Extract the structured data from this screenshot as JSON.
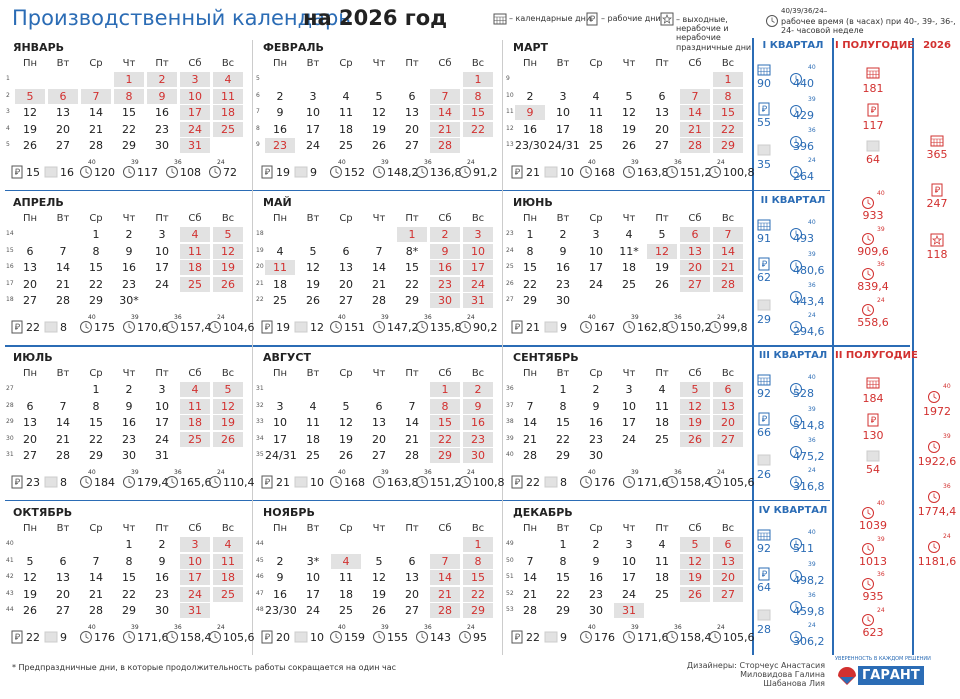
{
  "title": "Производственный календарь",
  "title_year": "на 2026 год",
  "legend": {
    "calendar_days": "– календарные дни",
    "work_days": "– рабочие дни",
    "days_off": "– выходные, нерабочие и нерабочие праздничные дни",
    "hours_top": "40/39/36/24–",
    "hours": "рабочее время (в часах) при 40-, 39-, 36-, 24- часовой неделе"
  },
  "hour_norms": [
    "40",
    "39",
    "36",
    "24"
  ],
  "weekdays": [
    "Пн",
    "Вт",
    "Ср",
    "Чт",
    "Пт",
    "Сб",
    "Вс"
  ],
  "months": [
    {
      "name": "ЯНВАРЬ",
      "weeks": [
        {
          "n": "1",
          "days": [
            null,
            null,
            null,
            "1",
            "2",
            "3",
            "4"
          ]
        },
        {
          "n": "2",
          "days": [
            "5",
            "6",
            "7",
            "8",
            "9",
            "10",
            "11"
          ]
        },
        {
          "n": "3",
          "days": [
            "12",
            "13",
            "14",
            "15",
            "16",
            "17",
            "18"
          ]
        },
        {
          "n": "4",
          "days": [
            "19",
            "20",
            "21",
            "22",
            "23",
            "24",
            "25"
          ]
        },
        {
          "n": "5",
          "days": [
            "26",
            "27",
            "28",
            "29",
            "30",
            "31"
          ]
        }
      ],
      "off_days": [
        "1",
        "2",
        "3",
        "4",
        "5",
        "6",
        "7",
        "8",
        "9",
        "10",
        "11",
        "17",
        "18",
        "24",
        "25",
        "31"
      ],
      "stats": {
        "work": "15",
        "off": "16",
        "hours": [
          "120",
          "117",
          "108",
          "72"
        ]
      }
    },
    {
      "name": "ФЕВРАЛЬ",
      "weeks": [
        {
          "n": "5",
          "days": [
            null,
            null,
            null,
            null,
            null,
            null,
            "1"
          ]
        },
        {
          "n": "6",
          "days": [
            "2",
            "3",
            "4",
            "5",
            "6",
            "7",
            "8"
          ]
        },
        {
          "n": "7",
          "days": [
            "9",
            "10",
            "11",
            "12",
            "13",
            "14",
            "15"
          ]
        },
        {
          "n": "8",
          "days": [
            "16",
            "17",
            "18",
            "19",
            "20",
            "21",
            "22"
          ]
        },
        {
          "n": "9",
          "days": [
            "23",
            "24",
            "25",
            "26",
            "27",
            "28"
          ]
        }
      ],
      "off_days": [
        "1",
        "7",
        "8",
        "14",
        "15",
        "21",
        "22",
        "23",
        "28"
      ],
      "stats": {
        "work": "19",
        "off": "9",
        "hours": [
          "152",
          "148,2",
          "136,8",
          "91,2"
        ]
      }
    },
    {
      "name": "МАРТ",
      "weeks": [
        {
          "n": "9",
          "days": [
            null,
            null,
            null,
            null,
            null,
            null,
            "1"
          ]
        },
        {
          "n": "10",
          "days": [
            "2",
            "3",
            "4",
            "5",
            "6",
            "7",
            "8"
          ]
        },
        {
          "n": "11",
          "days": [
            "9",
            "10",
            "11",
            "12",
            "13",
            "14",
            "15"
          ]
        },
        {
          "n": "12",
          "days": [
            "16",
            "17",
            "18",
            "19",
            "20",
            "21",
            "22"
          ]
        },
        {
          "n": "13",
          "days": [
            "23/30",
            "24/31",
            "25",
            "26",
            "27",
            "28",
            "29"
          ]
        }
      ],
      "off_days": [
        "1",
        "7",
        "8",
        "9",
        "14",
        "15",
        "21",
        "22",
        "28",
        "29"
      ],
      "stats": {
        "work": "21",
        "off": "10",
        "hours": [
          "168",
          "163,8",
          "151,2",
          "100,8"
        ]
      }
    },
    {
      "name": "АПРЕЛЬ",
      "weeks": [
        {
          "n": "14",
          "days": [
            null,
            null,
            "1",
            "2",
            "3",
            "4",
            "5"
          ]
        },
        {
          "n": "15",
          "days": [
            "6",
            "7",
            "8",
            "9",
            "10",
            "11",
            "12"
          ]
        },
        {
          "n": "16",
          "days": [
            "13",
            "14",
            "15",
            "16",
            "17",
            "18",
            "19"
          ]
        },
        {
          "n": "17",
          "days": [
            "20",
            "21",
            "22",
            "23",
            "24",
            "25",
            "26"
          ]
        },
        {
          "n": "18",
          "days": [
            "27",
            "28",
            "29",
            "30*"
          ]
        }
      ],
      "off_days": [
        "4",
        "5",
        "11",
        "12",
        "18",
        "19",
        "25",
        "26"
      ],
      "stats": {
        "work": "22",
        "off": "8",
        "hours": [
          "175",
          "170,6",
          "157,4",
          "104,6"
        ]
      }
    },
    {
      "name": "МАЙ",
      "weeks": [
        {
          "n": "18",
          "days": [
            null,
            null,
            null,
            null,
            "1",
            "2",
            "3"
          ]
        },
        {
          "n": "19",
          "days": [
            "4",
            "5",
            "6",
            "7",
            "8*",
            "9",
            "10"
          ]
        },
        {
          "n": "20",
          "days": [
            "11",
            "12",
            "13",
            "14",
            "15",
            "16",
            "17"
          ]
        },
        {
          "n": "21",
          "days": [
            "18",
            "19",
            "20",
            "21",
            "22",
            "23",
            "24"
          ]
        },
        {
          "n": "22",
          "days": [
            "25",
            "26",
            "27",
            "28",
            "29",
            "30",
            "31"
          ]
        }
      ],
      "off_days": [
        "1",
        "2",
        "3",
        "9",
        "10",
        "11",
        "16",
        "17",
        "23",
        "24",
        "30",
        "31"
      ],
      "stats": {
        "work": "19",
        "off": "12",
        "hours": [
          "151",
          "147,2",
          "135,8",
          "90,2"
        ]
      }
    },
    {
      "name": "ИЮНЬ",
      "weeks": [
        {
          "n": "23",
          "days": [
            "1",
            "2",
            "3",
            "4",
            "5",
            "6",
            "7"
          ]
        },
        {
          "n": "24",
          "days": [
            "8",
            "9",
            "10",
            "11*",
            "12",
            "13",
            "14"
          ]
        },
        {
          "n": "25",
          "days": [
            "15",
            "16",
            "17",
            "18",
            "19",
            "20",
            "21"
          ]
        },
        {
          "n": "26",
          "days": [
            "22",
            "23",
            "24",
            "25",
            "26",
            "27",
            "28"
          ]
        },
        {
          "n": "27",
          "days": [
            "29",
            "30"
          ]
        }
      ],
      "off_days": [
        "6",
        "7",
        "12",
        "13",
        "14",
        "20",
        "21",
        "27",
        "28"
      ],
      "stats": {
        "work": "21",
        "off": "9",
        "hours": [
          "167",
          "162,8",
          "150,2",
          "99,8"
        ]
      }
    },
    {
      "name": "ИЮЛЬ",
      "weeks": [
        {
          "n": "27",
          "days": [
            null,
            null,
            "1",
            "2",
            "3",
            "4",
            "5"
          ]
        },
        {
          "n": "28",
          "days": [
            "6",
            "7",
            "8",
            "9",
            "10",
            "11",
            "12"
          ]
        },
        {
          "n": "29",
          "days": [
            "13",
            "14",
            "15",
            "16",
            "17",
            "18",
            "19"
          ]
        },
        {
          "n": "30",
          "days": [
            "20",
            "21",
            "22",
            "23",
            "24",
            "25",
            "26"
          ]
        },
        {
          "n": "31",
          "days": [
            "27",
            "28",
            "29",
            "30",
            "31"
          ]
        }
      ],
      "off_days": [
        "4",
        "5",
        "11",
        "12",
        "18",
        "19",
        "25",
        "26"
      ],
      "stats": {
        "work": "23",
        "off": "8",
        "hours": [
          "184",
          "179,4",
          "165,6",
          "110,4"
        ]
      }
    },
    {
      "name": "АВГУСТ",
      "weeks": [
        {
          "n": "31",
          "days": [
            null,
            null,
            null,
            null,
            null,
            "1",
            "2"
          ]
        },
        {
          "n": "32",
          "days": [
            "3",
            "4",
            "5",
            "6",
            "7",
            "8",
            "9"
          ]
        },
        {
          "n": "33",
          "days": [
            "10",
            "11",
            "12",
            "13",
            "14",
            "15",
            "16"
          ]
        },
        {
          "n": "34",
          "days": [
            "17",
            "18",
            "19",
            "20",
            "21",
            "22",
            "23"
          ]
        },
        {
          "n": "35",
          "days": [
            "24/31",
            "25",
            "26",
            "27",
            "28",
            "29",
            "30"
          ]
        }
      ],
      "off_days": [
        "1",
        "2",
        "8",
        "9",
        "15",
        "16",
        "22",
        "23",
        "29",
        "30"
      ],
      "stats": {
        "work": "21",
        "off": "10",
        "hours": [
          "168",
          "163,8",
          "151,2",
          "100,8"
        ]
      }
    },
    {
      "name": "СЕНТЯБРЬ",
      "weeks": [
        {
          "n": "36",
          "days": [
            null,
            "1",
            "2",
            "3",
            "4",
            "5",
            "6"
          ]
        },
        {
          "n": "37",
          "days": [
            "7",
            "8",
            "9",
            "10",
            "11",
            "12",
            "13"
          ]
        },
        {
          "n": "38",
          "days": [
            "14",
            "15",
            "16",
            "17",
            "18",
            "19",
            "20"
          ]
        },
        {
          "n": "39",
          "days": [
            "21",
            "22",
            "23",
            "24",
            "25",
            "26",
            "27"
          ]
        },
        {
          "n": "40",
          "days": [
            "28",
            "29",
            "30"
          ]
        }
      ],
      "off_days": [
        "5",
        "6",
        "12",
        "13",
        "19",
        "20",
        "26",
        "27"
      ],
      "stats": {
        "work": "22",
        "off": "8",
        "hours": [
          "176",
          "171,6",
          "158,4",
          "105,6"
        ]
      }
    },
    {
      "name": "ОКТЯБРЬ",
      "weeks": [
        {
          "n": "40",
          "days": [
            null,
            null,
            null,
            "1",
            "2",
            "3",
            "4"
          ]
        },
        {
          "n": "41",
          "days": [
            "5",
            "6",
            "7",
            "8",
            "9",
            "10",
            "11"
          ]
        },
        {
          "n": "42",
          "days": [
            "12",
            "13",
            "14",
            "15",
            "16",
            "17",
            "18"
          ]
        },
        {
          "n": "43",
          "days": [
            "19",
            "20",
            "21",
            "22",
            "23",
            "24",
            "25"
          ]
        },
        {
          "n": "44",
          "days": [
            "26",
            "27",
            "28",
            "29",
            "30",
            "31"
          ]
        }
      ],
      "off_days": [
        "3",
        "4",
        "10",
        "11",
        "17",
        "18",
        "24",
        "25",
        "31"
      ],
      "stats": {
        "work": "22",
        "off": "9",
        "hours": [
          "176",
          "171,6",
          "158,4",
          "105,6"
        ]
      }
    },
    {
      "name": "НОЯБРЬ",
      "weeks": [
        {
          "n": "44",
          "days": [
            null,
            null,
            null,
            null,
            null,
            null,
            "1"
          ]
        },
        {
          "n": "45",
          "days": [
            "2",
            "3*",
            "4",
            "5",
            "6",
            "7",
            "8"
          ]
        },
        {
          "n": "46",
          "days": [
            "9",
            "10",
            "11",
            "12",
            "13",
            "14",
            "15"
          ]
        },
        {
          "n": "47",
          "days": [
            "16",
            "17",
            "18",
            "19",
            "20",
            "21",
            "22"
          ]
        },
        {
          "n": "48",
          "days": [
            "23/30",
            "24",
            "25",
            "26",
            "27",
            "28",
            "29"
          ]
        }
      ],
      "off_days": [
        "1",
        "4",
        "7",
        "8",
        "14",
        "15",
        "21",
        "22",
        "28",
        "29"
      ],
      "stats": {
        "work": "20",
        "off": "10",
        "hours": [
          "159",
          "155",
          "143",
          "95"
        ]
      }
    },
    {
      "name": "ДЕКАБРЬ",
      "weeks": [
        {
          "n": "49",
          "days": [
            null,
            "1",
            "2",
            "3",
            "4",
            "5",
            "6"
          ]
        },
        {
          "n": "50",
          "days": [
            "7",
            "8",
            "9",
            "10",
            "11",
            "12",
            "13"
          ]
        },
        {
          "n": "51",
          "days": [
            "14",
            "15",
            "16",
            "17",
            "18",
            "19",
            "20"
          ]
        },
        {
          "n": "52",
          "days": [
            "21",
            "22",
            "23",
            "24",
            "25",
            "26",
            "27"
          ]
        },
        {
          "n": "53",
          "days": [
            "28",
            "29",
            "30",
            "31"
          ]
        }
      ],
      "off_days": [
        "5",
        "6",
        "12",
        "13",
        "19",
        "20",
        "26",
        "27",
        "31"
      ],
      "stats": {
        "work": "22",
        "off": "9",
        "hours": [
          "176",
          "171,6",
          "158,4",
          "105,6"
        ]
      }
    }
  ],
  "quarters": [
    {
      "title": "I КВАРТАЛ",
      "calendar": "90",
      "work": "55",
      "off": "35",
      "hours": [
        "440",
        "429",
        "396",
        "264"
      ]
    },
    {
      "title": "II КВАРТАЛ",
      "calendar": "91",
      "work": "62",
      "off": "29",
      "hours": [
        "493",
        "480,6",
        "443,4",
        "294,6"
      ]
    },
    {
      "title": "III КВАРТАЛ",
      "calendar": "92",
      "work": "66",
      "off": "26",
      "hours": [
        "528",
        "514,8",
        "475,2",
        "316,8"
      ]
    },
    {
      "title": "IV КВАРТАЛ",
      "calendar": "92",
      "work": "64",
      "off": "28",
      "hours": [
        "511",
        "498,2",
        "459,8",
        "306,2"
      ]
    }
  ],
  "halves": [
    {
      "title": "I ПОЛУГОДИЕ",
      "calendar": "181",
      "work": "117",
      "off": "64",
      "hours": [
        "933",
        "909,6",
        "839,4",
        "558,6"
      ]
    },
    {
      "title": "II ПОЛУГОДИЕ",
      "calendar": "184",
      "work": "130",
      "off": "54",
      "hours": [
        "1039",
        "1013",
        "935",
        "623"
      ]
    }
  ],
  "year": {
    "title": "2026",
    "calendar": "365",
    "work": "247",
    "off": "118",
    "hours": [
      "1972",
      "1922,6",
      "1774,4",
      "1181,6"
    ]
  },
  "footnote": "* Предпраздничные дни, в которые продолжительность работы сокращается на один час",
  "designers": [
    "Дизайнеры: Сторчеус Анастасия",
    "Миловидова Галина",
    "Шабанова Лия"
  ],
  "logo": {
    "tagline": "УВЕРЕННОСТЬ В КАЖДОМ РЕШЕНИИ",
    "name": "ГАРАНТ"
  }
}
